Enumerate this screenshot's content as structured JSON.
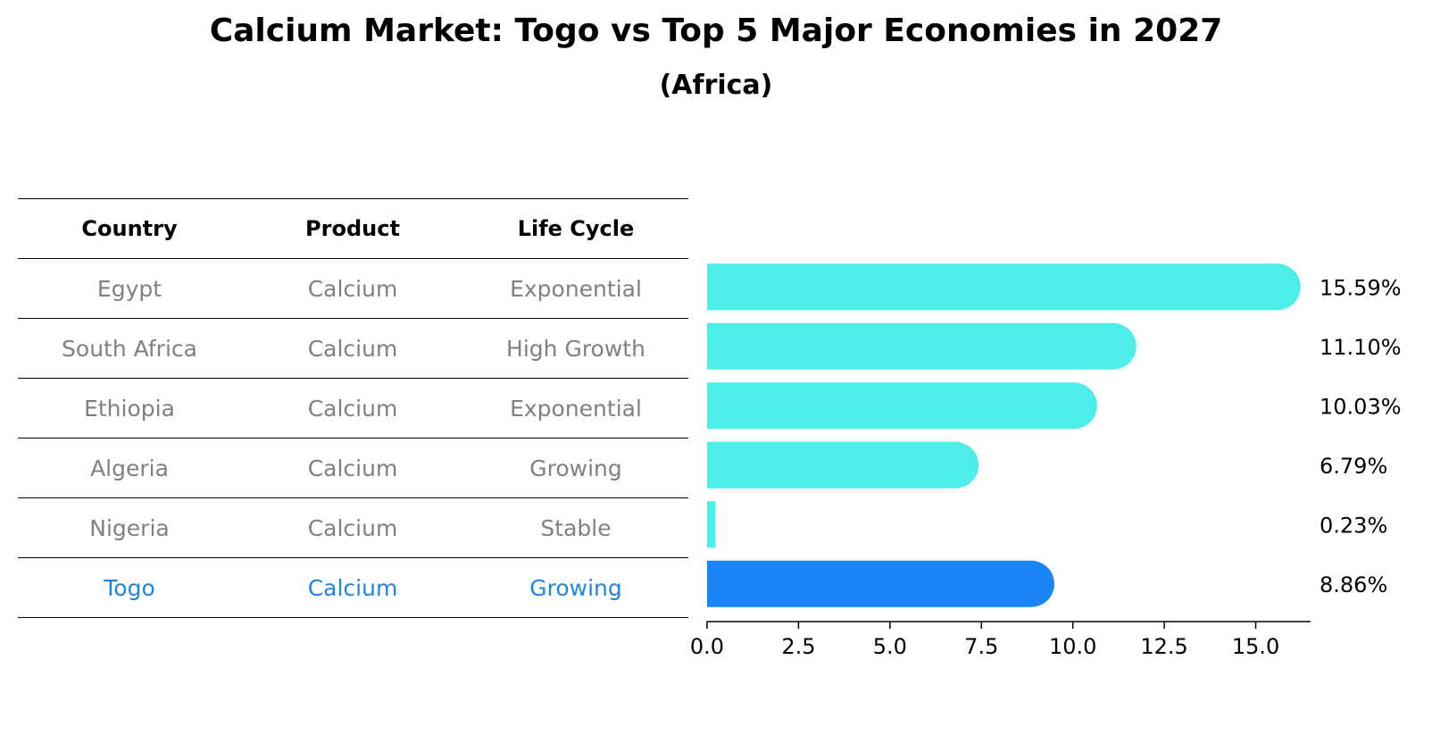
{
  "title": "Calcium Market: Togo vs Top 5 Major Economies in 2027",
  "subtitle": "(Africa)",
  "table": {
    "headers": [
      "Country",
      "Product",
      "Life Cycle"
    ],
    "rows": [
      [
        "Egypt",
        "Calcium",
        "Exponential"
      ],
      [
        "South Africa",
        "Calcium",
        "High Growth"
      ],
      [
        "Ethiopia",
        "Calcium",
        "Exponential"
      ],
      [
        "Algeria",
        "Calcium",
        "Growing"
      ],
      [
        "Nigeria",
        "Calcium",
        "Stable"
      ],
      [
        "Togo",
        "Calcium",
        "Growing"
      ]
    ],
    "highlight_row": 5
  },
  "chart_data": {
    "type": "bar",
    "orientation": "horizontal",
    "title": "Calcium Market: Togo vs Top 5 Major Economies in 2027",
    "subtitle": "(Africa)",
    "categories": [
      "Egypt",
      "South Africa",
      "Ethiopia",
      "Algeria",
      "Nigeria",
      "Togo"
    ],
    "values": [
      15.59,
      11.1,
      10.03,
      6.79,
      0.23,
      8.86
    ],
    "labels": [
      "15.59%",
      "11.10%",
      "10.03%",
      "6.79%",
      "0.23%",
      "8.86%"
    ],
    "xlim": [
      0,
      16.5
    ],
    "xticks": [
      "0.0",
      "2.5",
      "5.0",
      "7.5",
      "10.0",
      "12.5",
      "15.0"
    ],
    "xtick_values": [
      0,
      2.5,
      5,
      7.5,
      10,
      12.5,
      15
    ],
    "highlight_index": 5,
    "colors": {
      "bar": "#4deeea",
      "highlight": "#1a86f5",
      "other_text": "#808080",
      "highlight_text": "#1a86e8"
    }
  }
}
